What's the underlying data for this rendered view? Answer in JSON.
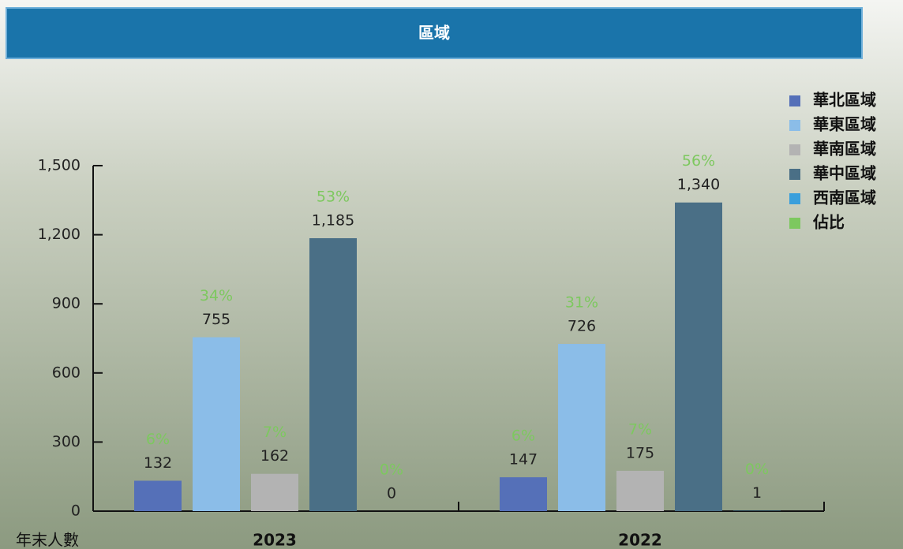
{
  "chart_data": {
    "type": "bar",
    "title": "區域",
    "y_label": "年末人數",
    "categories": [
      "2023",
      "2022"
    ],
    "series": [
      {
        "name": "華北區域",
        "color": "#5570b8",
        "values": [
          132,
          147
        ],
        "value_labels": [
          "132",
          "147"
        ],
        "shares": [
          6,
          6
        ],
        "share_labels": [
          "6%",
          "6%"
        ]
      },
      {
        "name": "華東區域",
        "color": "#8bbde8",
        "values": [
          755,
          726
        ],
        "value_labels": [
          "755",
          "726"
        ],
        "shares": [
          34,
          31
        ],
        "share_labels": [
          "34%",
          "31%"
        ]
      },
      {
        "name": "華南區域",
        "color": "#b3b3b3",
        "values": [
          162,
          175
        ],
        "value_labels": [
          "162",
          "175"
        ],
        "shares": [
          7,
          7
        ],
        "share_labels": [
          "7%",
          "7%"
        ]
      },
      {
        "name": "華中區域",
        "color": "#4a6f86",
        "values": [
          1185,
          1340
        ],
        "value_labels": [
          "1,185",
          "1,340"
        ],
        "shares": [
          53,
          56
        ],
        "share_labels": [
          "53%",
          "56%"
        ]
      },
      {
        "name": "西南區域",
        "color": "#3a9fdc",
        "values": [
          0,
          1
        ],
        "value_labels": [
          "0",
          "1"
        ],
        "shares": [
          0,
          0
        ],
        "share_labels": [
          "0%",
          "0%"
        ]
      }
    ],
    "share_legend": {
      "name": "佔比",
      "color": "#7dc85f"
    },
    "ylim": [
      0,
      1500
    ],
    "yticks": [
      0,
      300,
      600,
      900,
      {
        "value": 1200,
        "label": "1,200"
      },
      {
        "value": 1500,
        "label": "1,500"
      }
    ]
  }
}
